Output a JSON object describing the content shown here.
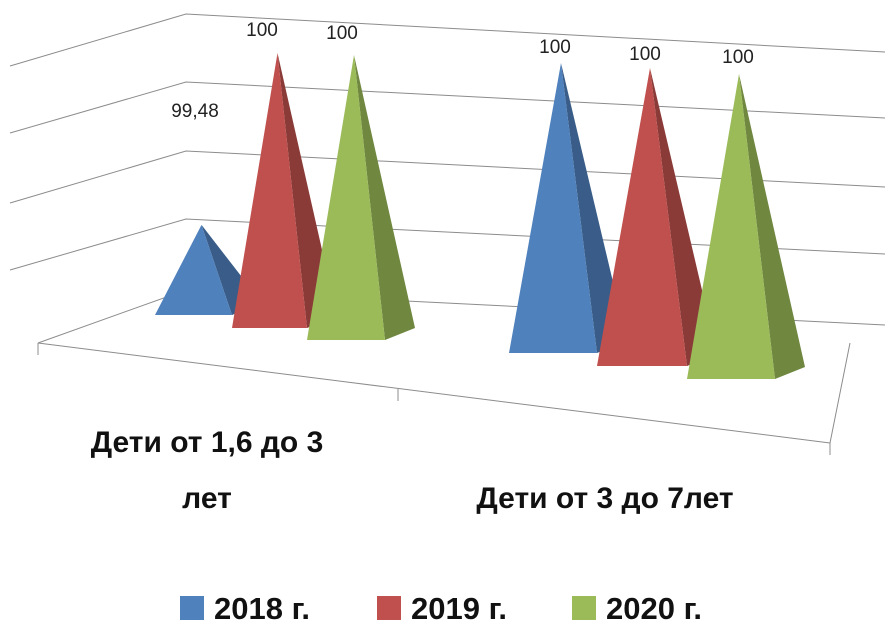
{
  "chart_data": {
    "type": "bar",
    "style": "3d-pyramid",
    "categories": [
      "Дети от 1,6 до 3 лет",
      "Дети от 3 до 7лет"
    ],
    "category_label_lines": [
      [
        "Дети от 1,6 до 3",
        "лет"
      ],
      [
        "Дети от 3 до 7лет"
      ]
    ],
    "series": [
      {
        "name": "2018 г.",
        "values": [
          99.48,
          100
        ],
        "labels": [
          "99,48",
          "100"
        ],
        "color": "#4F81BD"
      },
      {
        "name": "2019 г.",
        "values": [
          100,
          100
        ],
        "labels": [
          "100",
          "100"
        ],
        "color": "#C0504D"
      },
      {
        "name": "2020 г.",
        "values": [
          100,
          100
        ],
        "labels": [
          "100",
          "100"
        ],
        "color": "#9BBB59"
      }
    ],
    "title": "",
    "xlabel": "",
    "ylabel": "",
    "grid": true,
    "legend": "bottom"
  }
}
